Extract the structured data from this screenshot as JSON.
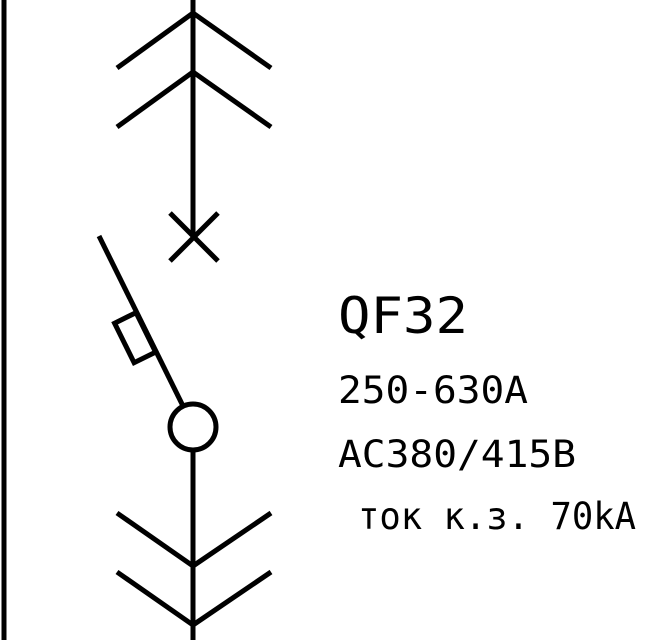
{
  "breaker": {
    "designation": "QF32",
    "current_range": "250-630A",
    "voltage": "AC380/415B",
    "short_circuit": "ток к.з. 70kA"
  },
  "colors": {
    "stroke": "#000000",
    "background": "#ffffff"
  }
}
